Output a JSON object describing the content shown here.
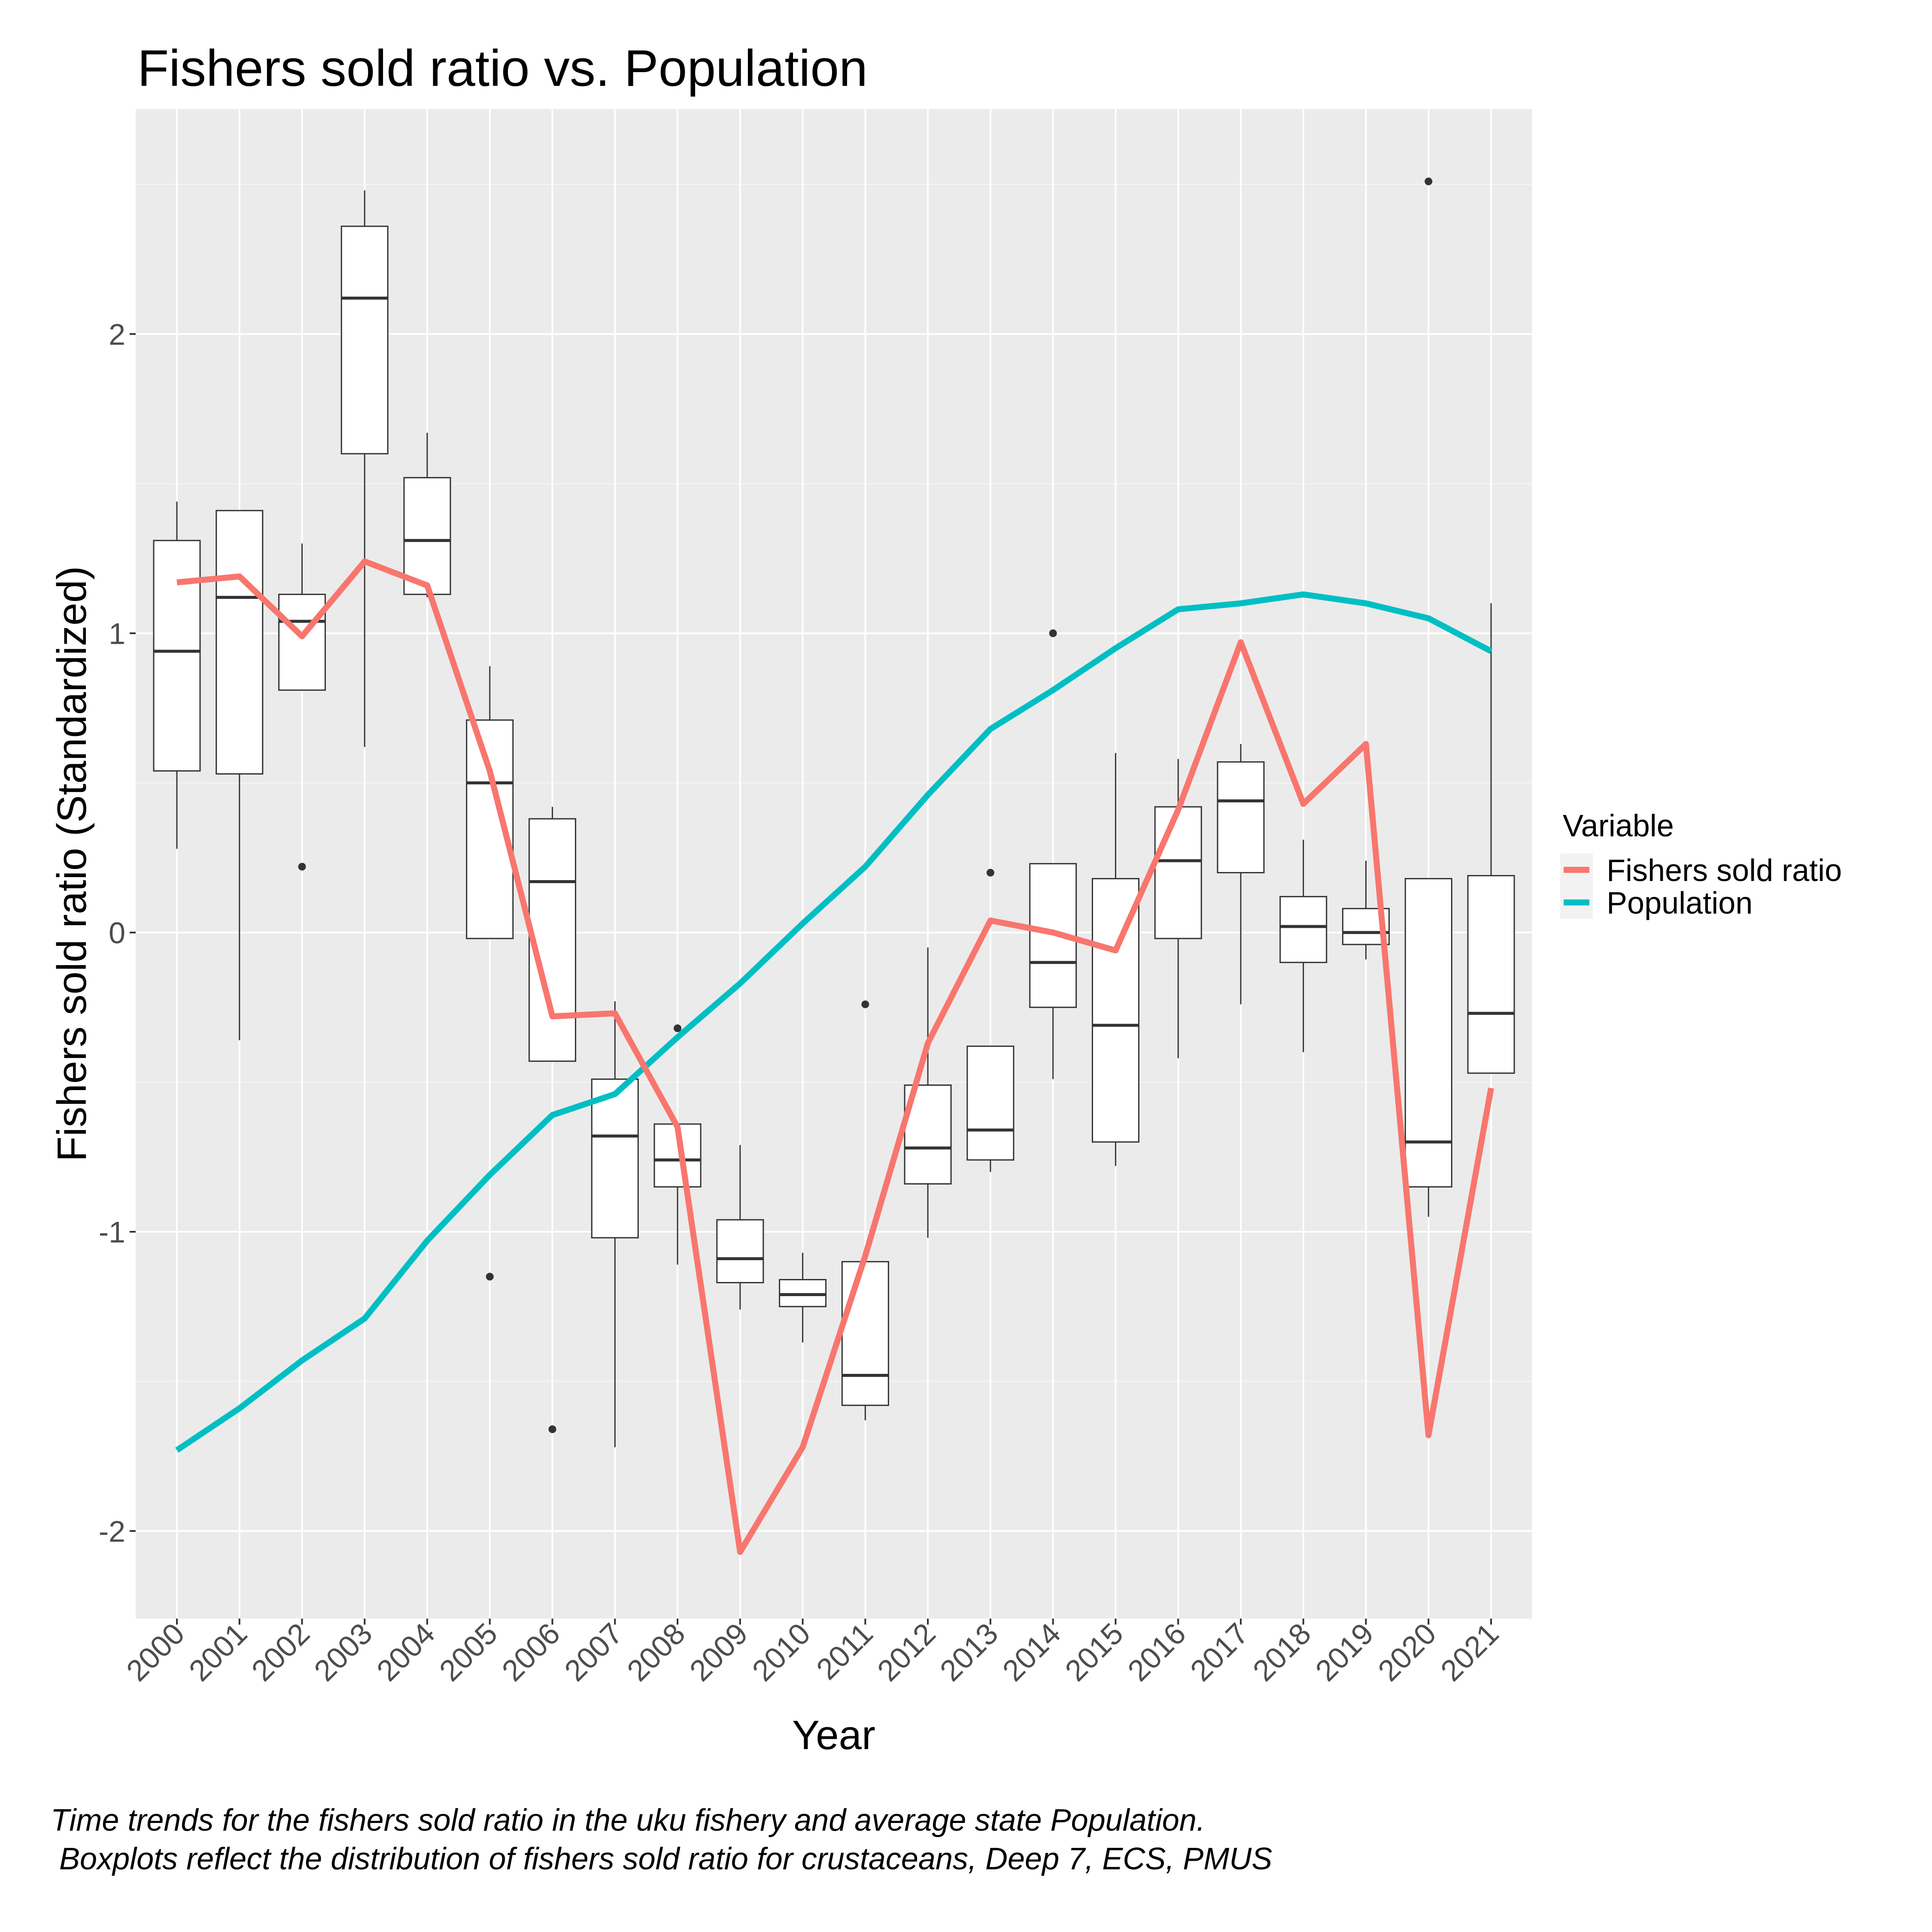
{
  "chart_data": {
    "type": "boxplot+line",
    "title": "Fishers sold ratio vs. Population",
    "xlabel": "Year",
    "ylabel": "Fishers sold ratio (Standardized)",
    "categories": [
      "2000",
      "2001",
      "2002",
      "2003",
      "2004",
      "2005",
      "2006",
      "2007",
      "2008",
      "2009",
      "2010",
      "2011",
      "2012",
      "2013",
      "2014",
      "2015",
      "2016",
      "2017",
      "2018",
      "2019",
      "2020",
      "2021"
    ],
    "ylim": [
      -2.3,
      2.7
    ],
    "yticks": [
      -2,
      -1,
      0,
      1,
      2
    ],
    "ytick_labels": [
      "-2",
      "-1",
      "0",
      "1",
      "2"
    ],
    "grid": true,
    "panel_background": "#EBEBEB",
    "boxplots": [
      {
        "year": "2000",
        "lower": 0.28,
        "q1": 0.54,
        "median": 0.94,
        "q3": 1.31,
        "upper": 1.44,
        "outliers": []
      },
      {
        "year": "2001",
        "lower": -0.36,
        "q1": 0.53,
        "median": 1.12,
        "q3": 1.41,
        "upper": 1.41,
        "outliers": []
      },
      {
        "year": "2002",
        "lower": 0.81,
        "q1": 0.81,
        "median": 1.04,
        "q3": 1.13,
        "upper": 1.3,
        "outliers": [
          0.22
        ]
      },
      {
        "year": "2003",
        "lower": 0.62,
        "q1": 1.6,
        "median": 2.12,
        "q3": 2.36,
        "upper": 2.48,
        "outliers": []
      },
      {
        "year": "2004",
        "lower": 1.12,
        "q1": 1.13,
        "median": 1.31,
        "q3": 1.52,
        "upper": 1.67,
        "outliers": []
      },
      {
        "year": "2005",
        "lower": -0.02,
        "q1": -0.02,
        "median": 0.5,
        "q3": 0.71,
        "upper": 0.89,
        "outliers": [
          -1.15
        ]
      },
      {
        "year": "2006",
        "lower": -0.43,
        "q1": -0.43,
        "median": 0.17,
        "q3": 0.38,
        "upper": 0.42,
        "outliers": [
          -1.66
        ]
      },
      {
        "year": "2007",
        "lower": -1.72,
        "q1": -1.02,
        "median": -0.68,
        "q3": -0.49,
        "upper": -0.23,
        "outliers": []
      },
      {
        "year": "2008",
        "lower": -1.11,
        "q1": -0.85,
        "median": -0.76,
        "q3": -0.64,
        "upper": -0.64,
        "outliers": [
          -0.32
        ]
      },
      {
        "year": "2009",
        "lower": -1.26,
        "q1": -1.17,
        "median": -1.09,
        "q3": -0.96,
        "upper": -0.71,
        "outliers": []
      },
      {
        "year": "2010",
        "lower": -1.37,
        "q1": -1.25,
        "median": -1.21,
        "q3": -1.16,
        "upper": -1.07,
        "outliers": []
      },
      {
        "year": "2011",
        "lower": -1.63,
        "q1": -1.58,
        "median": -1.48,
        "q3": -1.1,
        "upper": -1.1,
        "outliers": [
          -0.24
        ]
      },
      {
        "year": "2012",
        "lower": -1.02,
        "q1": -0.84,
        "median": -0.72,
        "q3": -0.51,
        "upper": -0.05,
        "outliers": []
      },
      {
        "year": "2013",
        "lower": -0.8,
        "q1": -0.76,
        "median": -0.66,
        "q3": -0.38,
        "upper": -0.38,
        "outliers": [
          0.2
        ]
      },
      {
        "year": "2014",
        "lower": -0.49,
        "q1": -0.25,
        "median": -0.1,
        "q3": 0.23,
        "upper": 0.23,
        "outliers": [
          1.0
        ]
      },
      {
        "year": "2015",
        "lower": -0.78,
        "q1": -0.7,
        "median": -0.31,
        "q3": 0.18,
        "upper": 0.6,
        "outliers": []
      },
      {
        "year": "2016",
        "lower": -0.42,
        "q1": -0.02,
        "median": 0.24,
        "q3": 0.42,
        "upper": 0.58,
        "outliers": []
      },
      {
        "year": "2017",
        "lower": -0.24,
        "q1": 0.2,
        "median": 0.44,
        "q3": 0.57,
        "upper": 0.63,
        "outliers": []
      },
      {
        "year": "2018",
        "lower": -0.4,
        "q1": -0.1,
        "median": 0.02,
        "q3": 0.12,
        "upper": 0.31,
        "outliers": []
      },
      {
        "year": "2019",
        "lower": -0.09,
        "q1": -0.04,
        "median": 0.0,
        "q3": 0.08,
        "upper": 0.24,
        "outliers": []
      },
      {
        "year": "2020",
        "lower": -0.95,
        "q1": -0.85,
        "median": -0.7,
        "q3": 0.18,
        "upper": 0.18,
        "outliers": [
          2.51
        ]
      },
      {
        "year": "2021",
        "lower": -0.47,
        "q1": -0.47,
        "median": -0.27,
        "q3": 0.19,
        "upper": 1.1,
        "outliers": []
      }
    ],
    "series": [
      {
        "name": "Fishers sold ratio",
        "color": "#F8766D",
        "values": [
          1.17,
          1.19,
          0.99,
          1.24,
          1.16,
          0.54,
          -0.28,
          -0.27,
          -0.65,
          -2.07,
          -1.72,
          -1.08,
          -0.37,
          0.04,
          0.0,
          -0.06,
          0.41,
          0.97,
          0.43,
          0.63,
          -1.68,
          -0.52
        ]
      },
      {
        "name": "Population",
        "color": "#00BFC4",
        "values": [
          -1.73,
          -1.59,
          -1.43,
          -1.29,
          -1.03,
          -0.81,
          -0.61,
          -0.54,
          -0.35,
          -0.17,
          0.03,
          0.22,
          0.46,
          0.68,
          0.81,
          0.95,
          1.08,
          1.1,
          1.13,
          1.1,
          1.05,
          0.94
        ]
      }
    ],
    "legend": {
      "title": "Variable",
      "position": "right",
      "items": [
        "Fishers sold ratio",
        "Population"
      ]
    }
  },
  "caption": {
    "line1": "Time trends for the fishers sold ratio in the uku fishery and average state Population.",
    "line2": " Boxplots reflect the distribution of fishers sold ratio for crustaceans, Deep 7, ECS, PMUS"
  }
}
